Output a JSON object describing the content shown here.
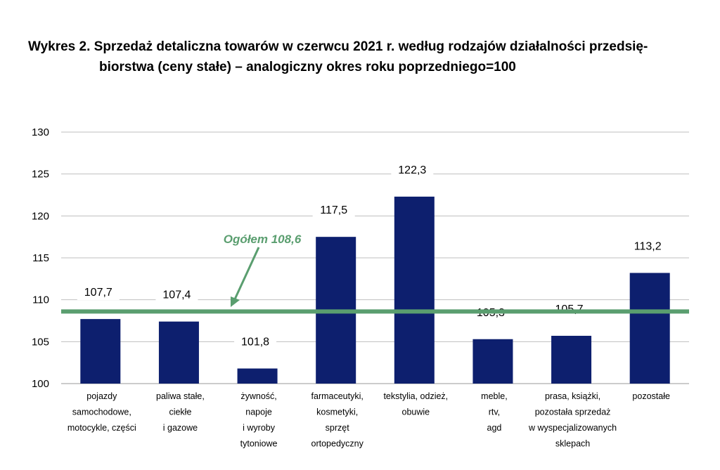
{
  "title": {
    "line1": "Wykres 2. Sprzedaż detaliczna towarów w czerwcu 2021 r. według rodzajów działalności przedsię-",
    "line2": "biorstwa (ceny stałe) – analogiczny okres roku poprzedniego=100"
  },
  "chart_data": {
    "type": "bar",
    "categories": [
      [
        "pojazdy",
        "samochodowe,",
        "motocykle, części"
      ],
      [
        "paliwa stałe,",
        "ciekłe",
        "i gazowe"
      ],
      [
        "żywność,",
        "napoje",
        "i wyroby",
        "tytoniowe"
      ],
      [
        "farmaceutyki,",
        "kosmetyki,",
        "sprzęt",
        "ortopedyczny"
      ],
      [
        "tekstylia, odzież,",
        "obuwie"
      ],
      [
        "meble,",
        "rtv,",
        "agd"
      ],
      [
        "prasa, książki,",
        "pozostała sprzedaż",
        "w wyspecjalizowanych",
        "sklepach"
      ],
      [
        "pozostałe"
      ]
    ],
    "values": [
      107.7,
      107.4,
      101.8,
      117.5,
      122.3,
      105.3,
      105.7,
      113.2
    ],
    "value_labels": [
      "107,7",
      "107,4",
      "101,8",
      "117,5",
      "122,3",
      "105,3",
      "105,7",
      "113,2"
    ],
    "ylim": [
      100,
      130
    ],
    "yticks": [
      100,
      105,
      110,
      115,
      120,
      125,
      130
    ],
    "grid": true,
    "bar_color": "#0d1f6e",
    "reference_line": {
      "value": 108.6,
      "label": "Ogółem 108,6",
      "color": "#5a9e6f"
    }
  }
}
